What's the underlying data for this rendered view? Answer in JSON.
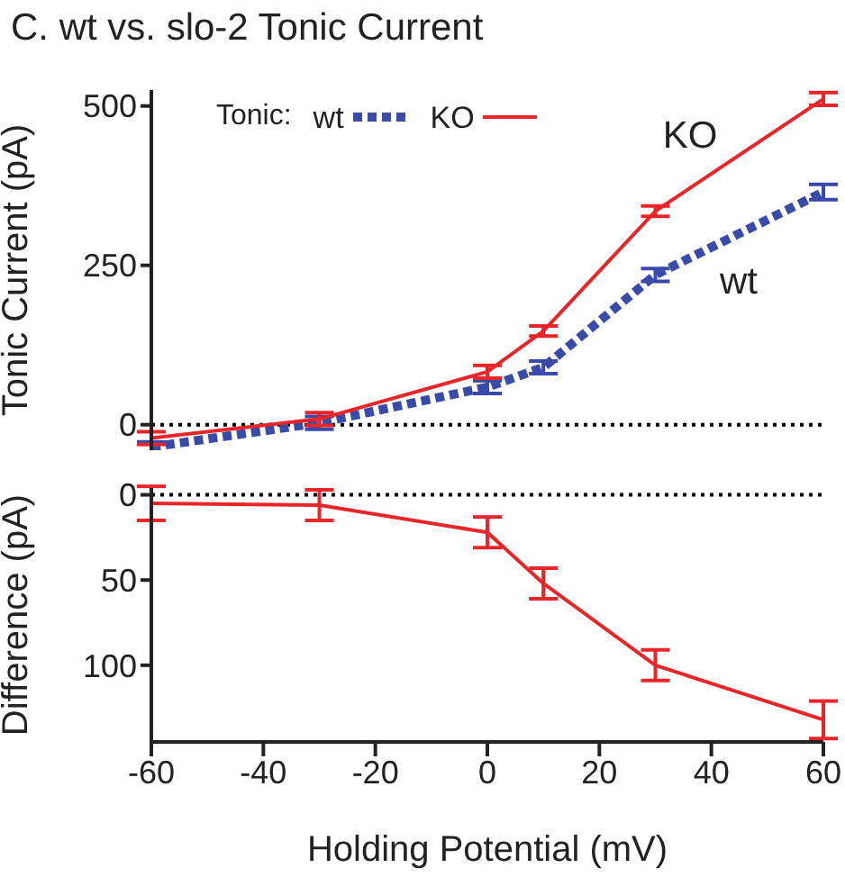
{
  "chart_data": [
    {
      "type": "line",
      "title": "C. wt vs. slo-2 Tonic Current",
      "ylabel": "Tonic Current (pA)",
      "legend_title": "Tonic:",
      "x": [
        -60,
        -30,
        0,
        10,
        30,
        60
      ],
      "series": [
        {
          "name": "wt",
          "color": "#3a4aa8",
          "values": [
            -35,
            3,
            59,
            90,
            235,
            365
          ],
          "errors": [
            8,
            10,
            10,
            10,
            10,
            12
          ],
          "line_style": "dashed"
        },
        {
          "name": "KO",
          "color": "#e8262a",
          "values": [
            -21,
            9,
            83,
            147,
            335,
            511
          ],
          "errors": [
            10,
            10,
            10,
            8,
            8,
            10
          ],
          "line_style": "solid"
        }
      ],
      "xlim": [
        -60,
        60
      ],
      "ylim": [
        -40,
        525
      ],
      "yticks": [
        0,
        250,
        500
      ],
      "tick_labels": "y",
      "legend": "top left",
      "ref_lines": [
        {
          "axis": "y",
          "value": 0,
          "line_style": "dotted",
          "color": "#000000"
        }
      ],
      "annotations": [
        "KO",
        "wt"
      ]
    },
    {
      "type": "line",
      "xlabel": "Holding Potential (mV)",
      "ylabel": "Difference (pA)",
      "x": [
        -60,
        -30,
        0,
        10,
        30,
        60
      ],
      "series": [
        {
          "color": "#e8262a",
          "values": [
            5,
            6,
            22,
            52,
            100,
            132
          ],
          "errors": [
            10,
            9,
            9,
            9,
            9,
            11
          ],
          "line_style": "solid"
        }
      ],
      "xlim": [
        -60,
        60
      ],
      "xticks": [
        -60,
        -40,
        -20,
        0,
        20,
        40,
        60
      ],
      "ylim": [
        145,
        -4
      ],
      "yticks": [
        0,
        50,
        100
      ],
      "ref_lines": [
        {
          "axis": "y",
          "value": 0,
          "line_style": "dotted",
          "color": "#000000"
        }
      ]
    }
  ]
}
